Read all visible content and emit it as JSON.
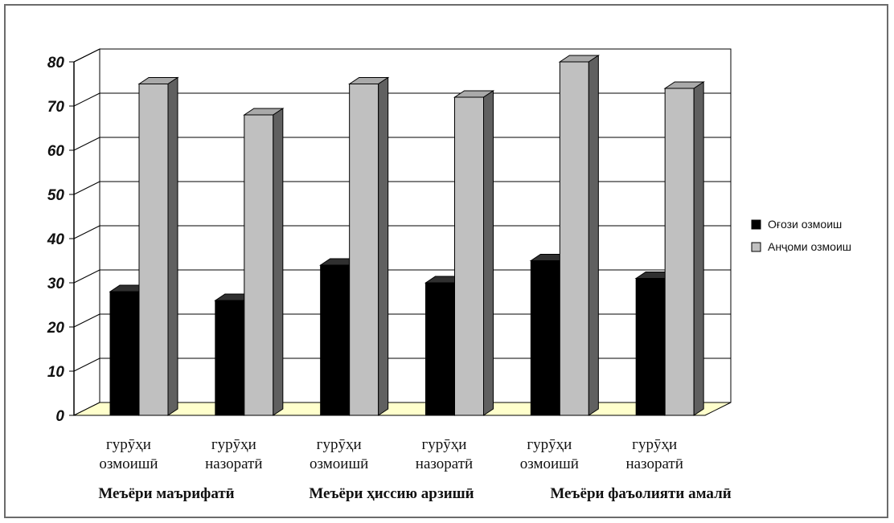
{
  "chart_data": {
    "type": "bar",
    "categories": [
      [
        "гурӯҳи",
        "озмоишӣ"
      ],
      [
        "гурӯҳи",
        "назоратӣ"
      ],
      [
        "гурӯҳи",
        "озмоишӣ"
      ],
      [
        "гурӯҳи",
        "назоратӣ"
      ],
      [
        "гурӯҳи",
        "озмоишӣ"
      ],
      [
        "гурӯҳи",
        "назоратӣ"
      ]
    ],
    "groups": [
      "Меъёри маърифатӣ",
      "Меъёри ҳиссию арзишӣ",
      "Меъёри фаъолияти амалӣ"
    ],
    "series": [
      {
        "name": "Оғози озмоиш",
        "color": "#000000",
        "values": [
          28,
          26,
          34,
          30,
          35,
          31
        ]
      },
      {
        "name": "Анҷоми озмоиш",
        "color": "#c0c0c0",
        "values": [
          75,
          68,
          75,
          72,
          80,
          74
        ]
      }
    ],
    "yticks": [
      0,
      10,
      20,
      30,
      40,
      50,
      60,
      70,
      80
    ],
    "ylim": [
      0,
      80
    ],
    "grid": true,
    "legend": "right",
    "floor_color": "#ffffcc"
  }
}
